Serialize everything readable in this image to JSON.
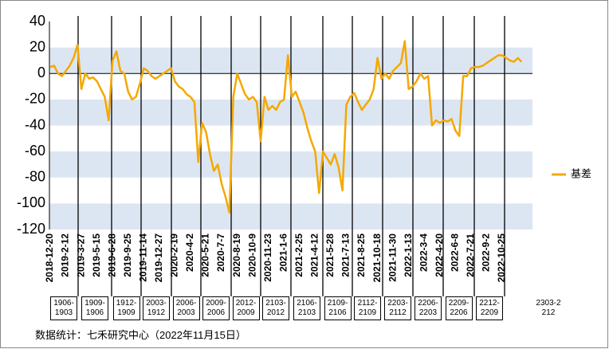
{
  "chart_data": {
    "type": "line",
    "categories": [
      "2018-12-20",
      null,
      null,
      null,
      "2019-2-12",
      null,
      null,
      null,
      "2019-3-27",
      null,
      null,
      null,
      "2019-5-15",
      null,
      null,
      null,
      "2019-6-28",
      null,
      null,
      null,
      "2019-9-25",
      null,
      null,
      null,
      "2019-11-14",
      null,
      null,
      null,
      "2019-12-27",
      null,
      null,
      null,
      "2020-2-19",
      null,
      null,
      null,
      "2020-4-2",
      null,
      null,
      null,
      "2020-5-21",
      null,
      null,
      null,
      "2020-7-7",
      null,
      null,
      null,
      "2020-8-19",
      null,
      null,
      null,
      "2020-10-9",
      null,
      null,
      null,
      "2020-11-23",
      null,
      null,
      null,
      "2021-1-6",
      null,
      null,
      null,
      "2021-2-25",
      null,
      null,
      null,
      "2021-4-12",
      null,
      null,
      null,
      "2021-5-28",
      null,
      null,
      null,
      "2021-7-13",
      null,
      null,
      null,
      "2021-8-25",
      null,
      null,
      null,
      "2021-10-18",
      null,
      null,
      null,
      "2021-11-30",
      null,
      null,
      null,
      "2022-1-13",
      null,
      null,
      null,
      "2022-3-4",
      null,
      null,
      null,
      "2022-4-20",
      null,
      null,
      null,
      "2022-6-8",
      null,
      null,
      null,
      "2022-7-21",
      null,
      null,
      null,
      "2022-9-2",
      null,
      null,
      null,
      "2022-10-25",
      null,
      null,
      null,
      null,
      null
    ],
    "series": [
      {
        "name": "基差",
        "color": "#f5a800",
        "values": [
          5,
          6,
          0,
          -2,
          2,
          6,
          12,
          22,
          -12,
          0,
          -4,
          -3,
          -6,
          -12,
          -18,
          -36,
          10,
          17,
          2,
          0,
          -14,
          -20,
          -18,
          -8,
          4,
          2,
          -2,
          -4,
          -2,
          0,
          2,
          4,
          -6,
          -10,
          -12,
          -16,
          -18,
          -22,
          -68,
          -38,
          -45,
          -62,
          -75,
          -70,
          -85,
          -95,
          -107,
          -18,
          0,
          -8,
          -16,
          -20,
          -18,
          -22,
          -52,
          -18,
          -28,
          -25,
          -28,
          -22,
          -20,
          14,
          -18,
          -14,
          -22,
          -30,
          -42,
          -52,
          -60,
          -92,
          -60,
          -65,
          -70,
          -62,
          -72,
          -90,
          -24,
          -18,
          -15,
          -22,
          -28,
          -24,
          -20,
          -12,
          12,
          -4,
          0,
          -4,
          2,
          5,
          8,
          25,
          -12,
          -10,
          -6,
          0,
          -4,
          -2,
          -40,
          -36,
          -38,
          -36,
          -37,
          -35,
          -44,
          -48,
          -2,
          -2,
          4,
          5,
          5,
          6,
          8,
          10,
          12,
          14,
          14,
          12,
          10,
          9,
          12,
          9
        ]
      }
    ],
    "ylim": [
      -120,
      40
    ],
    "yticks": [
      -120,
      -100,
      -80,
      -60,
      -40,
      -20,
      0,
      20,
      40
    ],
    "grid": "bands",
    "grid_color": "#dce6f2",
    "legend": "right",
    "contracts": [
      "1906-1903",
      "1909-1906",
      "1912-1909",
      "2003-1912",
      "2006-2003",
      "2009-2006",
      "2012-2009",
      "2103-2012",
      "2106-2103",
      "2109-2106",
      "2112-2109",
      "2203-2112",
      "2206-2203",
      "2209-2206",
      "2212-2209",
      "2303-2212"
    ],
    "note": "数据统计：七禾研究中心（2022年11月15日）"
  }
}
